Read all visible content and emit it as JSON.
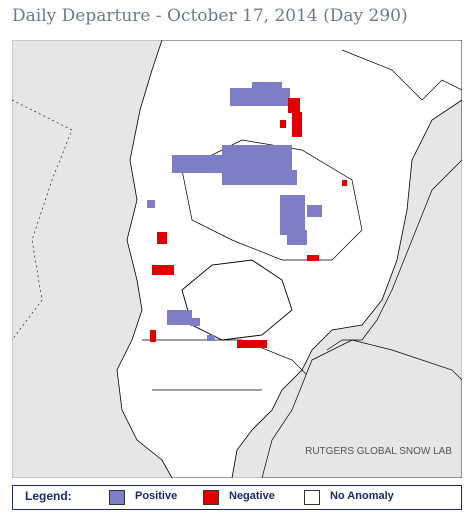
{
  "header": {
    "title": "Daily Departure - October 17, 2014 (Day 290)"
  },
  "map": {
    "credit": "RUTGERS GLOBAL SNOW LAB"
  },
  "legend": {
    "label": "Legend:",
    "items": [
      {
        "label": "Positive",
        "color": "#7d7dc8"
      },
      {
        "label": "Negative",
        "color": "#e00000"
      },
      {
        "label": "No Anomaly",
        "color": "#ffffff"
      }
    ]
  }
}
